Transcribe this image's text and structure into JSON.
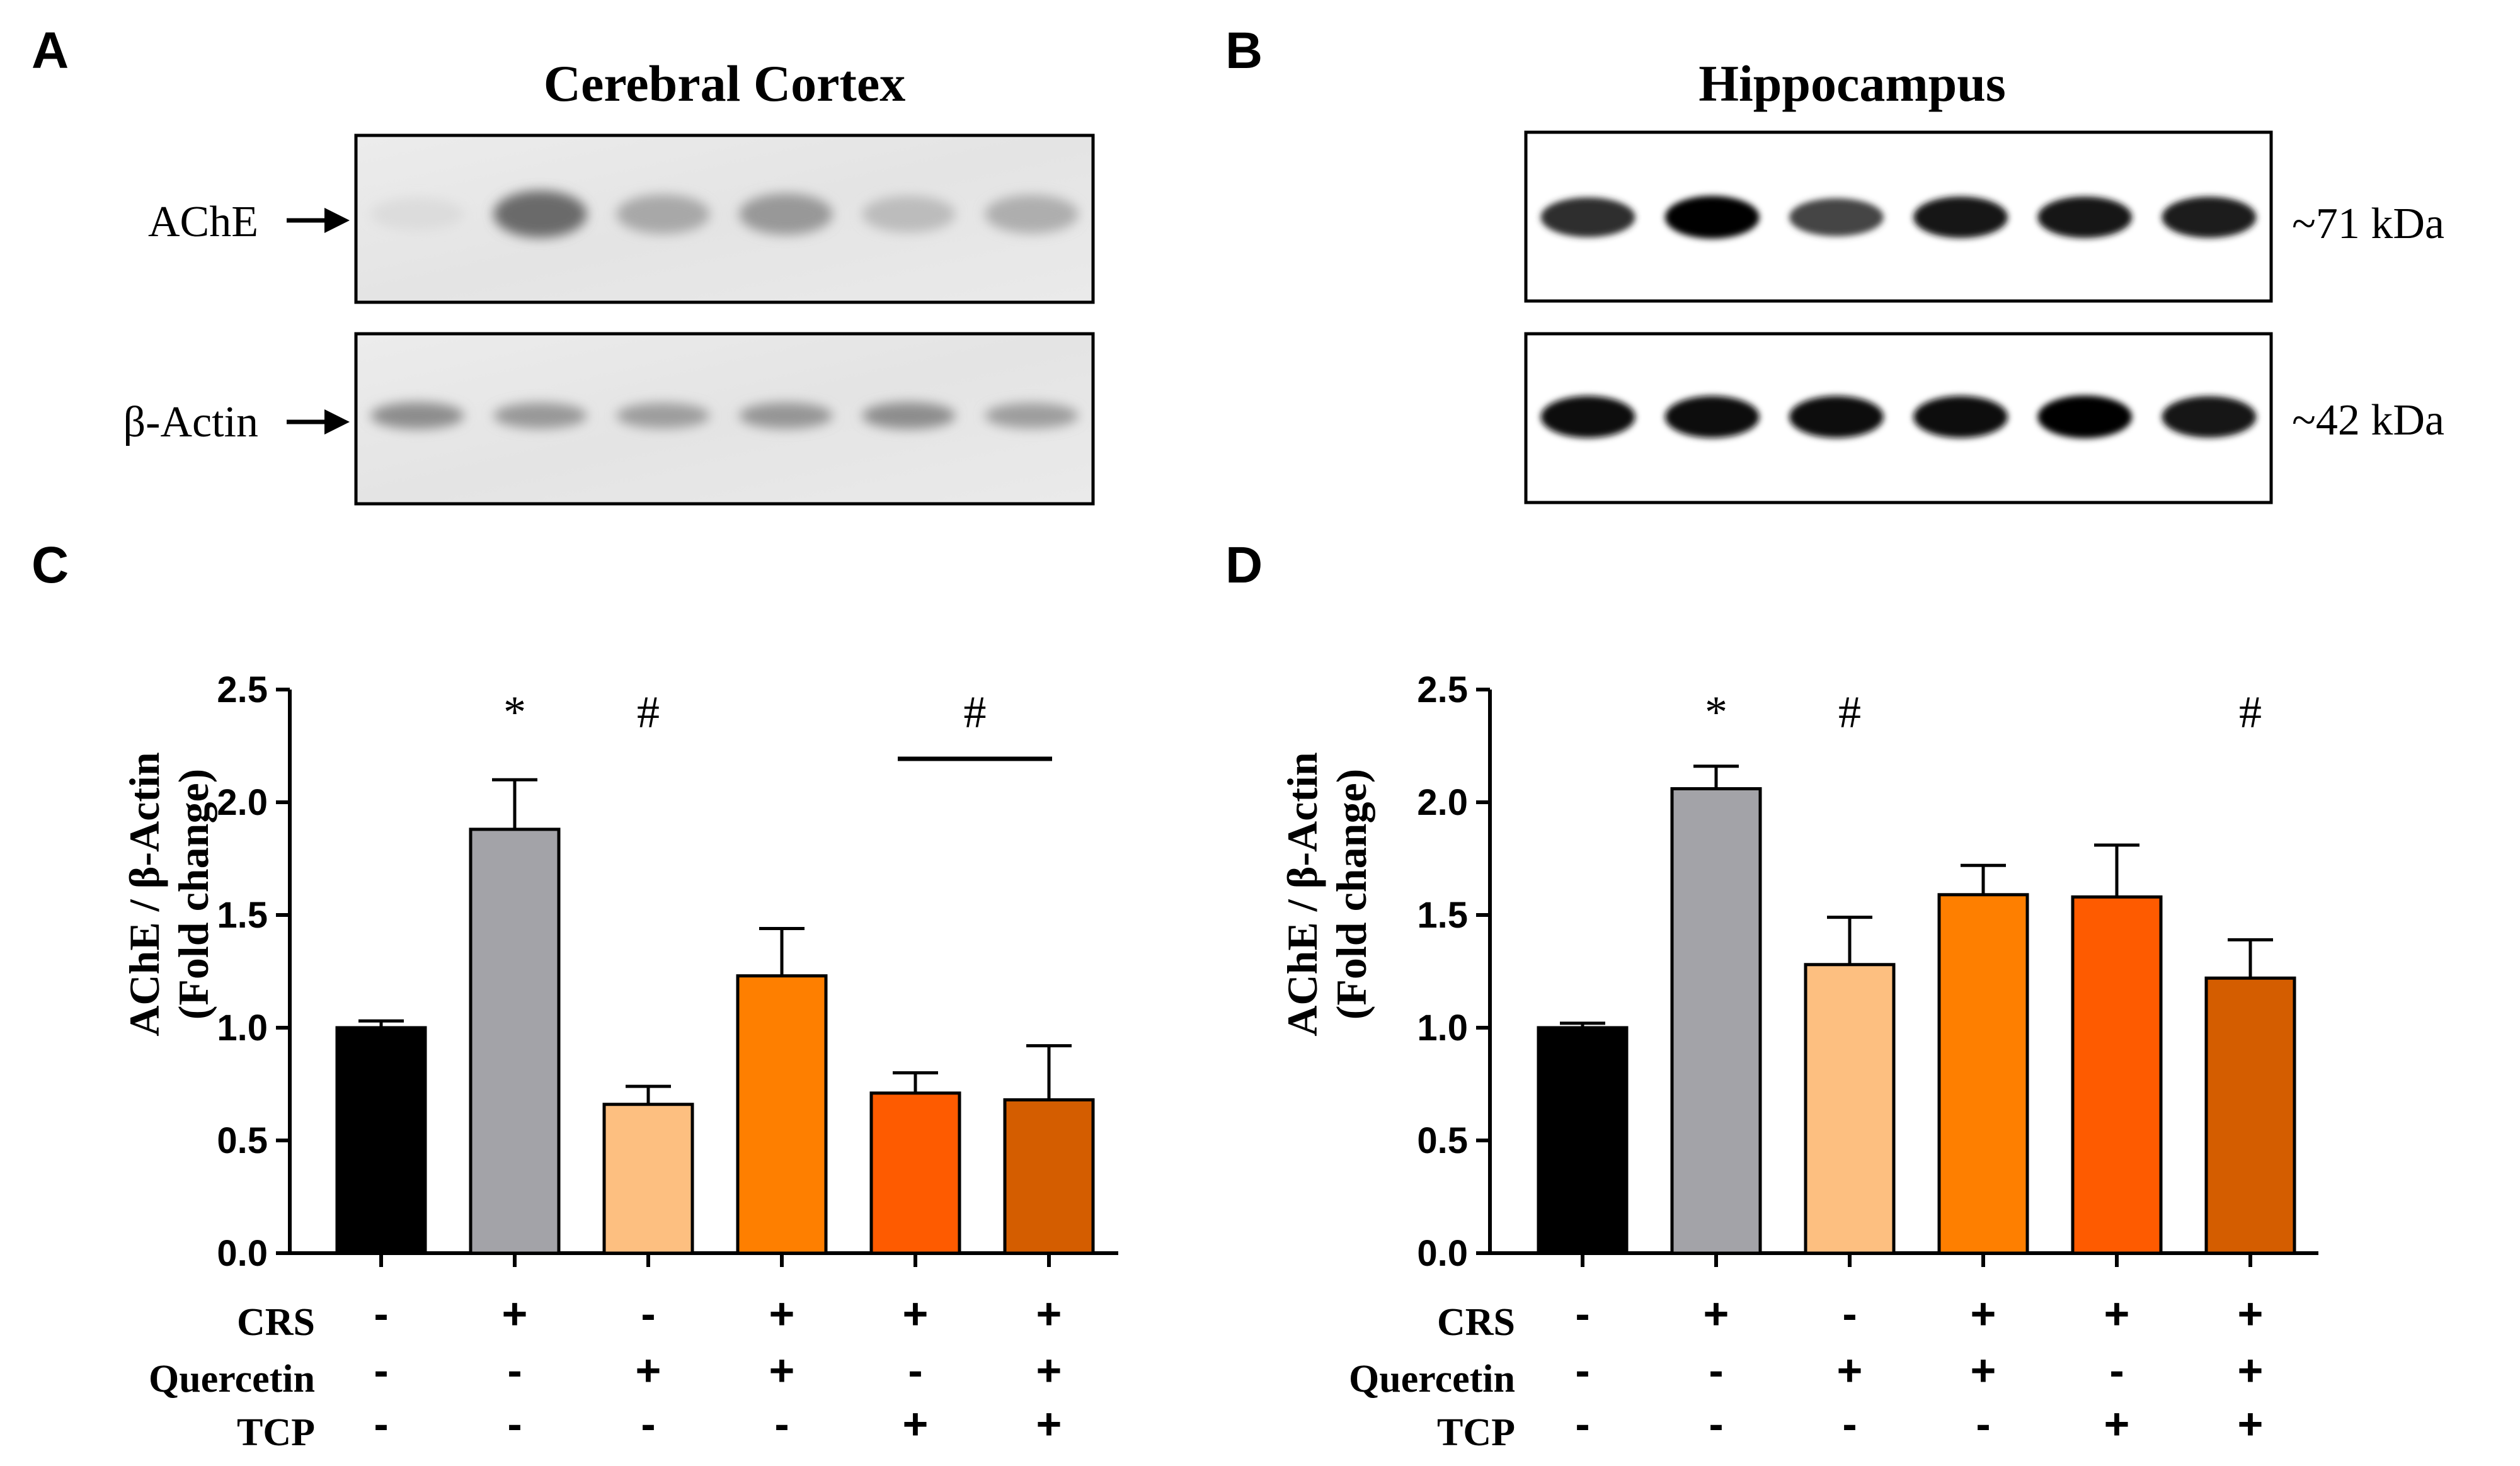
{
  "panels": {
    "A": {
      "letter": "A",
      "title": "Cerebral Cortex",
      "row_labels": [
        "AChE",
        "β-Actin"
      ],
      "lanes": 6,
      "band_intensity": {
        "ache": [
          0.05,
          0.72,
          0.36,
          0.45,
          0.24,
          0.32
        ],
        "actin": [
          0.55,
          0.48,
          0.45,
          0.5,
          0.55,
          0.45
        ]
      }
    },
    "B": {
      "letter": "B",
      "title": "Hippocampus",
      "mw_labels": [
        "~71 kDa",
        "~42 kDa"
      ],
      "lanes": 6,
      "band_intensity": {
        "ache": [
          0.82,
          1.0,
          0.72,
          0.92,
          0.92,
          0.9
        ],
        "actin": [
          0.95,
          0.95,
          0.95,
          0.95,
          1.0,
          0.92
        ]
      }
    }
  },
  "chart_data": [
    {
      "type": "bar",
      "letter": "C",
      "title": "",
      "ylabel_lines": [
        "AChE / β-Actin",
        "(Fold change)"
      ],
      "ylim": [
        0,
        2.5
      ],
      "yticks": [
        "0.0",
        "0.5",
        "1.0",
        "1.5",
        "2.0",
        "2.5"
      ],
      "ytick_values": [
        0,
        0.5,
        1.0,
        1.5,
        2.0,
        2.5
      ],
      "categories": [
        "Control",
        "CRS",
        "Quercetin",
        "CRS+Quercetin",
        "CRS+TCP",
        "CRS+Quercetin+TCP"
      ],
      "values": [
        1.0,
        1.88,
        0.66,
        1.23,
        0.71,
        0.68
      ],
      "errors": [
        0.03,
        0.22,
        0.08,
        0.21,
        0.09,
        0.24
      ],
      "colors": [
        "#000000",
        "#a3a3a8",
        "#fdbf80",
        "#fe7f00",
        "#fe5b00",
        "#d45d00"
      ],
      "annotations": [
        "",
        "*",
        "#",
        "",
        "",
        ""
      ],
      "bracket": {
        "from": 4,
        "to": 5,
        "label": "#"
      },
      "treatments": [
        {
          "name": "CRS",
          "signs": [
            "-",
            "+",
            "-",
            "+",
            "+",
            "+"
          ]
        },
        {
          "name": "Quercetin",
          "signs": [
            "-",
            "-",
            "+",
            "+",
            "-",
            "+"
          ]
        },
        {
          "name": "TCP",
          "signs": [
            "-",
            "-",
            "-",
            "-",
            "+",
            "+"
          ]
        }
      ]
    },
    {
      "type": "bar",
      "letter": "D",
      "title": "",
      "ylabel_lines": [
        "AChE / β-Actin",
        "(Fold change)"
      ],
      "ylim": [
        0,
        2.5
      ],
      "yticks": [
        "0.0",
        "0.5",
        "1.0",
        "1.5",
        "2.0",
        "2.5"
      ],
      "ytick_values": [
        0,
        0.5,
        1.0,
        1.5,
        2.0,
        2.5
      ],
      "categories": [
        "Control",
        "CRS",
        "Quercetin",
        "CRS+Quercetin",
        "CRS+TCP",
        "CRS+Quercetin+TCP"
      ],
      "values": [
        1.0,
        2.06,
        1.28,
        1.59,
        1.58,
        1.22
      ],
      "errors": [
        0.02,
        0.1,
        0.21,
        0.13,
        0.23,
        0.17
      ],
      "colors": [
        "#000000",
        "#a3a3a8",
        "#fdbf80",
        "#fe7f00",
        "#fe5b00",
        "#d45d00"
      ],
      "annotations": [
        "",
        "*",
        "#",
        "",
        "",
        "#"
      ],
      "bracket": null,
      "treatments": [
        {
          "name": "CRS",
          "signs": [
            "-",
            "+",
            "-",
            "+",
            "+",
            "+"
          ]
        },
        {
          "name": "Quercetin",
          "signs": [
            "-",
            "-",
            "+",
            "+",
            "-",
            "+"
          ]
        },
        {
          "name": "TCP",
          "signs": [
            "-",
            "-",
            "-",
            "-",
            "+",
            "+"
          ]
        }
      ]
    }
  ]
}
